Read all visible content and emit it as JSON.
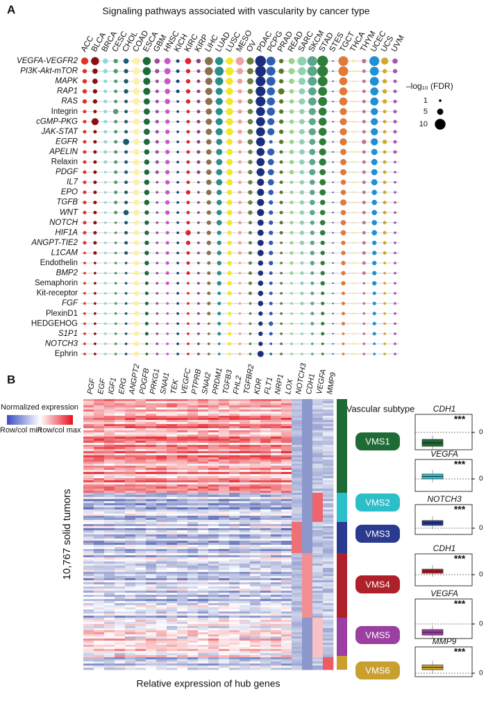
{
  "chart_data": [
    {
      "type": "dot",
      "panel_label": "A",
      "title": "Signaling pathways associated with vascularity by cancer type",
      "categories": [
        "ACC",
        "BLCA",
        "BRCA",
        "CESC",
        "CHOL",
        "COAD",
        "ESCA",
        "GBM",
        "HNSC",
        "KICH",
        "KIRC",
        "KIRP",
        "LIHC",
        "LUAD",
        "LUSC",
        "MESO",
        "OV",
        "PDAC",
        "PCPG",
        "PRAD",
        "READ",
        "SARC",
        "SKCM",
        "STAD",
        "STES",
        "TGCT",
        "THCA",
        "THYM",
        "UCEC",
        "UCS",
        "UVM"
      ],
      "colors": [
        "#e53023",
        "#8b1010",
        "#8fd6d8",
        "#4f9a6e",
        "#1c5b6e",
        "#fff0a8",
        "#1d6b3a",
        "#9a4d9b",
        "#c856c8",
        "#1a3f7a",
        "#d9262f",
        "#8a3d8a",
        "#8b6f4e",
        "#2b8c8c",
        "#f2e826",
        "#f0a0a0",
        "#6b7d3a",
        "#1c2f7c",
        "#2f5fb3",
        "#5a7a28",
        "#9ad38a",
        "#8fd1b3",
        "#5aa78a",
        "#2e7d3a",
        "#3a5a9a",
        "#e07a3a",
        "#f5f0a0",
        "#c7708a",
        "#1f8fd6",
        "#d4a62a",
        "#a05ab0"
      ],
      "rows": [
        "VEGFA-VEGFR2",
        "PI3K-Akt-mTOR",
        "MAPK",
        "RAP1",
        "RAS",
        "Integrin",
        "cGMP-PKG",
        "JAK-STAT",
        "EGFR",
        "APELIN",
        "Relaxin",
        "PDGF",
        "IL7",
        "EPO",
        "TGFB",
        "WNT",
        "NOTCH",
        "HIF1A",
        "ANGPT-TIE2",
        "L1CAM",
        "Endothelin",
        "BMP2",
        "Semaphorin",
        "Kit-receptor",
        "FGF",
        "PlexinD1",
        "HEDGEHOG",
        "S1P1",
        "NOTCH3",
        "Ephrin"
      ],
      "italic_rows": [
        true,
        true,
        true,
        true,
        true,
        false,
        true,
        true,
        true,
        true,
        false,
        true,
        true,
        true,
        true,
        true,
        true,
        true,
        true,
        true,
        false,
        true,
        false,
        false,
        true,
        false,
        false,
        true,
        true,
        false
      ],
      "values": [
        [
          6,
          7,
          4,
          3,
          4,
          6,
          7,
          4,
          5,
          2,
          5,
          3,
          7,
          7,
          6,
          7,
          6,
          10,
          8,
          3,
          5,
          8,
          9,
          10,
          0,
          9,
          2,
          3,
          9,
          6,
          4
        ],
        [
          3,
          4,
          3,
          3,
          3,
          6,
          7,
          3,
          5,
          2,
          3,
          2,
          7,
          8,
          7,
          5,
          5,
          10,
          8,
          4,
          5,
          7,
          9,
          10,
          0,
          9,
          1,
          2,
          8,
          3,
          3
        ],
        [
          3,
          4,
          2,
          2,
          3,
          6,
          6,
          2,
          5,
          2,
          3,
          2,
          6,
          7,
          6,
          4,
          5,
          9,
          8,
          3,
          4,
          6,
          8,
          9,
          0,
          7,
          1,
          2,
          8,
          3,
          2
        ],
        [
          3,
          3,
          2,
          2,
          3,
          6,
          6,
          2,
          4,
          2,
          3,
          2,
          6,
          6,
          6,
          3,
          4,
          9,
          7,
          5,
          3,
          5,
          7,
          8,
          0,
          7,
          1,
          2,
          7,
          3,
          2
        ],
        [
          3,
          3,
          2,
          2,
          2,
          6,
          5,
          2,
          4,
          1,
          3,
          2,
          6,
          6,
          6,
          3,
          4,
          9,
          7,
          3,
          3,
          5,
          7,
          8,
          0,
          7,
          1,
          2,
          7,
          3,
          2
        ],
        [
          2,
          2,
          2,
          4,
          2,
          5,
          5,
          2,
          3,
          1,
          2,
          2,
          5,
          6,
          6,
          3,
          4,
          8,
          7,
          3,
          3,
          4,
          6,
          7,
          0,
          6,
          1,
          2,
          6,
          2,
          2
        ],
        [
          2,
          6,
          2,
          2,
          2,
          5,
          5,
          2,
          3,
          1,
          2,
          2,
          5,
          6,
          6,
          3,
          4,
          8,
          6,
          3,
          3,
          4,
          6,
          7,
          0,
          6,
          1,
          2,
          6,
          2,
          2
        ],
        [
          2,
          2,
          2,
          2,
          2,
          5,
          5,
          2,
          3,
          1,
          2,
          2,
          5,
          6,
          6,
          3,
          4,
          8,
          6,
          3,
          3,
          4,
          6,
          7,
          0,
          6,
          1,
          2,
          6,
          2,
          2
        ],
        [
          2,
          2,
          2,
          2,
          5,
          5,
          5,
          2,
          3,
          1,
          2,
          2,
          4,
          5,
          5,
          3,
          4,
          8,
          2,
          3,
          3,
          4,
          5,
          6,
          0,
          6,
          1,
          3,
          6,
          3,
          2
        ],
        [
          2,
          2,
          2,
          2,
          2,
          5,
          4,
          2,
          3,
          1,
          2,
          2,
          4,
          5,
          5,
          2,
          3,
          7,
          6,
          2,
          3,
          4,
          5,
          6,
          0,
          5,
          1,
          2,
          5,
          2,
          2
        ],
        [
          2,
          2,
          2,
          2,
          2,
          5,
          4,
          2,
          3,
          1,
          2,
          2,
          4,
          5,
          5,
          2,
          3,
          7,
          5,
          2,
          3,
          4,
          5,
          6,
          0,
          5,
          1,
          2,
          5,
          2,
          1
        ],
        [
          2,
          2,
          1,
          2,
          2,
          5,
          4,
          2,
          3,
          1,
          2,
          2,
          4,
          5,
          5,
          2,
          3,
          7,
          5,
          2,
          3,
          3,
          5,
          5,
          0,
          5,
          1,
          2,
          5,
          2,
          1
        ],
        [
          2,
          2,
          1,
          2,
          2,
          5,
          4,
          1,
          3,
          1,
          2,
          1,
          4,
          5,
          5,
          2,
          3,
          6,
          5,
          2,
          2,
          3,
          4,
          5,
          0,
          4,
          1,
          2,
          5,
          2,
          1
        ],
        [
          2,
          2,
          1,
          2,
          2,
          5,
          4,
          1,
          3,
          1,
          3,
          1,
          4,
          4,
          4,
          2,
          3,
          6,
          4,
          2,
          2,
          3,
          4,
          5,
          0,
          4,
          1,
          2,
          4,
          2,
          1
        ],
        [
          2,
          2,
          1,
          2,
          2,
          5,
          4,
          1,
          3,
          1,
          2,
          1,
          3,
          4,
          4,
          2,
          3,
          6,
          3,
          2,
          2,
          3,
          4,
          4,
          0,
          5,
          1,
          2,
          4,
          2,
          1
        ],
        [
          2,
          2,
          1,
          2,
          4,
          5,
          3,
          1,
          3,
          1,
          2,
          1,
          3,
          4,
          4,
          2,
          3,
          6,
          3,
          2,
          2,
          3,
          4,
          4,
          0,
          4,
          1,
          2,
          4,
          2,
          1
        ],
        [
          2,
          2,
          1,
          1,
          2,
          4,
          3,
          1,
          2,
          1,
          2,
          1,
          3,
          4,
          4,
          2,
          2,
          5,
          3,
          2,
          2,
          3,
          3,
          4,
          0,
          4,
          1,
          2,
          4,
          2,
          1
        ],
        [
          2,
          2,
          1,
          1,
          2,
          4,
          3,
          1,
          2,
          1,
          4,
          1,
          3,
          3,
          3,
          2,
          2,
          5,
          3,
          2,
          2,
          3,
          3,
          4,
          0,
          4,
          1,
          2,
          4,
          2,
          1
        ],
        [
          2,
          2,
          1,
          1,
          2,
          4,
          3,
          1,
          2,
          1,
          3,
          1,
          3,
          3,
          3,
          2,
          2,
          5,
          3,
          1,
          2,
          3,
          3,
          3,
          0,
          3,
          1,
          2,
          3,
          2,
          1
        ],
        [
          1,
          2,
          1,
          1,
          2,
          4,
          3,
          1,
          2,
          1,
          2,
          1,
          3,
          3,
          3,
          2,
          2,
          5,
          3,
          1,
          2,
          2,
          3,
          3,
          0,
          3,
          1,
          2,
          3,
          2,
          1
        ],
        [
          1,
          1,
          1,
          1,
          1,
          4,
          3,
          1,
          2,
          1,
          2,
          1,
          2,
          3,
          3,
          1,
          2,
          4,
          3,
          1,
          2,
          2,
          3,
          3,
          0,
          3,
          1,
          2,
          3,
          1,
          1
        ],
        [
          1,
          1,
          1,
          1,
          1,
          4,
          3,
          1,
          2,
          1,
          2,
          1,
          2,
          3,
          3,
          1,
          2,
          4,
          2,
          1,
          2,
          2,
          2,
          3,
          0,
          3,
          1,
          2,
          3,
          1,
          1
        ],
        [
          1,
          1,
          1,
          1,
          1,
          4,
          2,
          1,
          2,
          1,
          1,
          1,
          2,
          3,
          3,
          1,
          2,
          4,
          2,
          1,
          1,
          2,
          2,
          3,
          0,
          3,
          1,
          1,
          3,
          1,
          1
        ],
        [
          1,
          1,
          1,
          1,
          1,
          4,
          2,
          1,
          1,
          1,
          1,
          1,
          2,
          2,
          3,
          1,
          2,
          4,
          2,
          1,
          1,
          2,
          2,
          2,
          0,
          2,
          1,
          1,
          2,
          1,
          1
        ],
        [
          1,
          1,
          1,
          1,
          1,
          4,
          2,
          1,
          1,
          1,
          1,
          1,
          2,
          2,
          2,
          1,
          1,
          4,
          2,
          1,
          1,
          2,
          2,
          2,
          0,
          2,
          1,
          1,
          2,
          1,
          1
        ],
        [
          1,
          1,
          1,
          1,
          1,
          4,
          2,
          1,
          1,
          1,
          1,
          1,
          2,
          2,
          2,
          1,
          1,
          3,
          2,
          1,
          1,
          1,
          2,
          2,
          0,
          2,
          1,
          1,
          2,
          1,
          1
        ],
        [
          1,
          1,
          1,
          1,
          1,
          4,
          2,
          1,
          1,
          1,
          1,
          1,
          1,
          2,
          2,
          1,
          1,
          3,
          3,
          1,
          1,
          1,
          2,
          2,
          0,
          2,
          1,
          1,
          2,
          1,
          1
        ],
        [
          1,
          1,
          1,
          1,
          1,
          4,
          2,
          1,
          1,
          1,
          1,
          1,
          1,
          2,
          2,
          1,
          1,
          3,
          2,
          1,
          1,
          1,
          1,
          2,
          0,
          1,
          1,
          1,
          2,
          1,
          1
        ],
        [
          1,
          1,
          1,
          1,
          1,
          4,
          1,
          1,
          1,
          1,
          1,
          1,
          1,
          1,
          2,
          1,
          1,
          3,
          1,
          1,
          1,
          1,
          1,
          1,
          0,
          1,
          1,
          1,
          1,
          1,
          1
        ],
        [
          1,
          1,
          1,
          1,
          1,
          4,
          1,
          1,
          1,
          1,
          1,
          1,
          1,
          1,
          1,
          1,
          1,
          5,
          1,
          1,
          1,
          1,
          1,
          1,
          0,
          1,
          1,
          1,
          1,
          1,
          1
        ]
      ],
      "size_legend": {
        "title": "–log₁₀ (FDR)",
        "values": [
          1,
          5,
          10
        ]
      }
    },
    {
      "type": "heatmap",
      "panel_label": "B",
      "x_categories": [
        "PGF",
        "EGF",
        "IGF1",
        "ERG",
        "ANGPT2",
        "PDGFB",
        "PRKG1",
        "SNAI1",
        "TEK",
        "VEGFC",
        "PTPRB",
        "SNAI2",
        "PRDM1",
        "TGFB3",
        "FHL2",
        "TGFBR2",
        "KDR",
        "FLT1",
        "NRP1",
        "LOX",
        "NOTCH3",
        "CDH1",
        "VEGFA",
        "MMP9"
      ],
      "ylabel": "10,767 solid tumors",
      "xlabel": "Relative expression of hub genes",
      "legend_title": "Normalized expression",
      "legend_min_label": "Row/col min",
      "legend_max_label": "Row/col max",
      "subtype_title": "Vascular subtype",
      "subtypes": [
        {
          "name": "VMS1",
          "color": "#1f6b35",
          "gene": "CDH1",
          "significance": "***"
        },
        {
          "name": "VMS2",
          "color": "#2bbfc9",
          "gene": "VEGFA",
          "significance": "***"
        },
        {
          "name": "VMS3",
          "color": "#2a3b8f",
          "gene": "NOTCH3",
          "significance": "***"
        },
        {
          "name": "VMS4",
          "color": "#b0202a",
          "gene": "CDH1",
          "significance": "***"
        },
        {
          "name": "VMS5",
          "color": "#9b3fa0",
          "gene": "VEGFA",
          "significance": "***"
        },
        {
          "name": "VMS6",
          "color": "#c9a030",
          "gene": "MMP9",
          "significance": "***"
        }
      ],
      "box_yticks": [
        0
      ]
    }
  ]
}
